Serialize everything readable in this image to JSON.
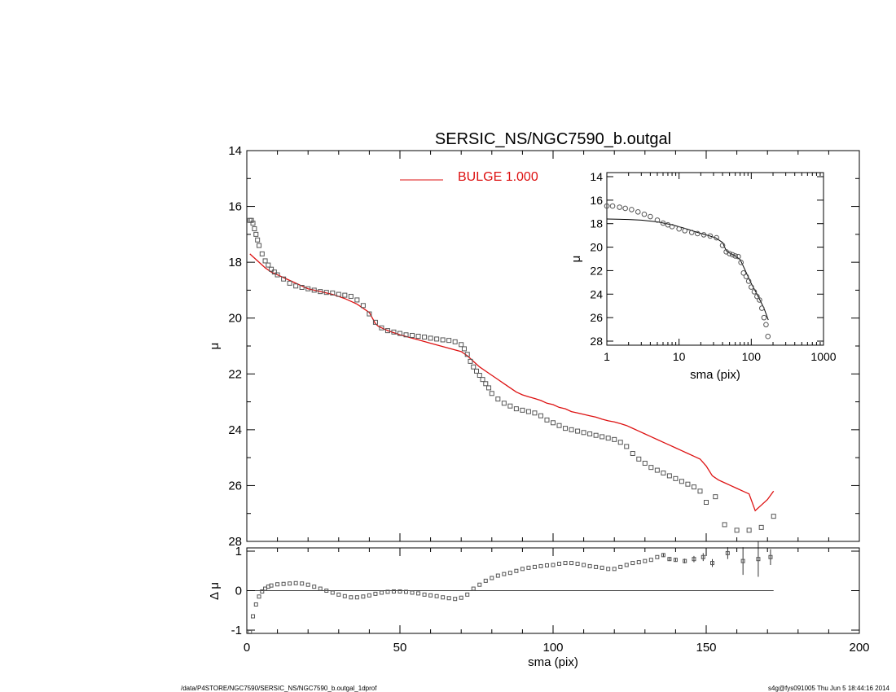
{
  "title": "SERSIC_NS/NGC7590_b.outgal",
  "footer": {
    "left": "/data/P4STORE/NGC7590/SERSIC_NS/NGC7590_b.outgal_1dprof",
    "right": "s4g@fys091005  Thu Jun  5 18:44:16 2014"
  },
  "colors": {
    "model": "#dd1111",
    "data": "#555555",
    "axis": "#000000"
  },
  "legend": {
    "label": "BULGE  1.000"
  },
  "chart_data": [
    {
      "type": "scatter",
      "panel": "main",
      "ylabel": "μ",
      "xlim": [
        0,
        200
      ],
      "ylim": [
        28,
        14
      ],
      "yticks": [
        "14",
        "16",
        "18",
        "20",
        "22",
        "24",
        "26",
        "28"
      ],
      "series": [
        {
          "kind": "data",
          "x": [
            1,
            1.5,
            2,
            2.5,
            3,
            3.5,
            4,
            5,
            6,
            7,
            8,
            9,
            10,
            12,
            14,
            16,
            18,
            20,
            22,
            24,
            26,
            28,
            30,
            32,
            34,
            36,
            38,
            40,
            42,
            44,
            46,
            48,
            50,
            52,
            54,
            56,
            58,
            60,
            62,
            64,
            66,
            68,
            70,
            71,
            72,
            73,
            74,
            75,
            76,
            77,
            78,
            79,
            80,
            82,
            84,
            86,
            88,
            90,
            92,
            94,
            96,
            98,
            100,
            102,
            104,
            106,
            108,
            110,
            112,
            114,
            116,
            118,
            120,
            122,
            124,
            126,
            128,
            130,
            132,
            134,
            136,
            138,
            140,
            142,
            144,
            146,
            148,
            150,
            153,
            156,
            160,
            164,
            168,
            172
          ],
          "y": [
            16.5,
            16.5,
            16.6,
            16.8,
            17.0,
            17.2,
            17.4,
            17.7,
            17.95,
            18.1,
            18.25,
            18.35,
            18.45,
            18.6,
            18.75,
            18.85,
            18.9,
            18.95,
            19.0,
            19.05,
            19.08,
            19.1,
            19.15,
            19.18,
            19.22,
            19.35,
            19.55,
            19.85,
            20.15,
            20.35,
            20.45,
            20.5,
            20.55,
            20.6,
            20.62,
            20.65,
            20.68,
            20.72,
            20.75,
            20.78,
            20.8,
            20.85,
            20.95,
            21.1,
            21.3,
            21.55,
            21.75,
            21.9,
            22.05,
            22.2,
            22.35,
            22.5,
            22.7,
            22.9,
            23.05,
            23.15,
            23.25,
            23.3,
            23.35,
            23.4,
            23.5,
            23.65,
            23.75,
            23.85,
            23.95,
            24.0,
            24.05,
            24.1,
            24.15,
            24.2,
            24.25,
            24.3,
            24.35,
            24.45,
            24.6,
            24.85,
            25.05,
            25.2,
            25.35,
            25.45,
            25.55,
            25.65,
            25.75,
            25.85,
            25.95,
            26.05,
            26.2,
            26.6,
            26.4,
            27.4,
            27.6,
            27.6,
            27.5,
            27.1
          ]
        },
        {
          "kind": "model",
          "name": "BULGE  1.000",
          "x": [
            1,
            4,
            6,
            8,
            10,
            12,
            15,
            18,
            20,
            24,
            28,
            32,
            36,
            40,
            41,
            42,
            43,
            44,
            46,
            50,
            55,
            60,
            65,
            70,
            72,
            74,
            76,
            78,
            80,
            82,
            84,
            86,
            88,
            90,
            92,
            94,
            96,
            98,
            100,
            102,
            104,
            106,
            108,
            110,
            112,
            114,
            116,
            118,
            120,
            122,
            124,
            126,
            128,
            130,
            132,
            134,
            136,
            138,
            140,
            142,
            144,
            146,
            148,
            150,
            152,
            154,
            156,
            158,
            160,
            162,
            164,
            166,
            168,
            170,
            172
          ],
          "y": [
            17.7,
            18.0,
            18.2,
            18.35,
            18.45,
            18.55,
            18.7,
            18.85,
            18.95,
            19.05,
            19.15,
            19.3,
            19.5,
            19.8,
            20.0,
            20.2,
            20.3,
            20.35,
            20.45,
            20.6,
            20.75,
            20.9,
            21.05,
            21.2,
            21.35,
            21.55,
            21.75,
            21.9,
            22.05,
            22.2,
            22.35,
            22.5,
            22.65,
            22.75,
            22.82,
            22.88,
            22.95,
            23.05,
            23.1,
            23.2,
            23.25,
            23.35,
            23.4,
            23.45,
            23.5,
            23.55,
            23.62,
            23.68,
            23.72,
            23.78,
            23.85,
            23.95,
            24.05,
            24.15,
            24.25,
            24.35,
            24.45,
            24.55,
            24.65,
            24.75,
            24.85,
            24.95,
            25.05,
            25.3,
            25.65,
            25.8,
            25.9,
            26.0,
            26.1,
            26.2,
            26.3,
            26.9,
            26.7,
            26.5,
            26.2
          ]
        }
      ]
    },
    {
      "type": "scatter",
      "panel": "residual",
      "xlabel": "sma (pix)",
      "ylabel": "Δ μ",
      "xlim": [
        0,
        200
      ],
      "ylim": [
        -1,
        1
      ],
      "xticks": [
        "0",
        "50",
        "100",
        "150",
        "200"
      ],
      "yticks": [
        "1",
        "0",
        "-1"
      ],
      "series": [
        {
          "kind": "residual",
          "x": [
            1,
            2,
            3,
            4,
            5,
            6,
            7,
            8,
            10,
            12,
            14,
            16,
            18,
            20,
            22,
            24,
            26,
            28,
            30,
            32,
            34,
            36,
            38,
            40,
            42,
            44,
            46,
            48,
            50,
            52,
            54,
            56,
            58,
            60,
            62,
            64,
            66,
            68,
            70,
            72,
            74,
            76,
            78,
            80,
            82,
            84,
            86,
            88,
            90,
            92,
            94,
            96,
            98,
            100,
            102,
            104,
            106,
            108,
            110,
            112,
            114,
            116,
            118,
            120,
            122,
            124,
            126,
            128,
            130,
            132,
            134,
            136,
            138,
            140,
            143,
            146,
            149,
            152,
            157,
            162,
            167,
            171
          ],
          "y": [
            -1.05,
            -0.65,
            -0.35,
            -0.15,
            -0.02,
            0.05,
            0.1,
            0.13,
            0.16,
            0.17,
            0.18,
            0.19,
            0.18,
            0.15,
            0.1,
            0.05,
            0.0,
            -0.05,
            -0.1,
            -0.14,
            -0.17,
            -0.17,
            -0.15,
            -0.12,
            -0.08,
            -0.05,
            -0.03,
            -0.02,
            -0.02,
            -0.03,
            -0.05,
            -0.07,
            -0.1,
            -0.12,
            -0.14,
            -0.17,
            -0.19,
            -0.21,
            -0.18,
            -0.1,
            0.05,
            0.15,
            0.25,
            0.32,
            0.38,
            0.42,
            0.45,
            0.5,
            0.55,
            0.58,
            0.6,
            0.62,
            0.64,
            0.65,
            0.68,
            0.7,
            0.7,
            0.68,
            0.65,
            0.62,
            0.6,
            0.58,
            0.55,
            0.55,
            0.6,
            0.65,
            0.7,
            0.72,
            0.75,
            0.78,
            0.85,
            0.9,
            0.8,
            0.78,
            0.75,
            0.8,
            0.85,
            0.7,
            0.95,
            0.75,
            0.8,
            0.85
          ],
          "err": [
            0,
            0,
            0,
            0,
            0,
            0,
            0,
            0,
            0,
            0,
            0,
            0,
            0,
            0,
            0,
            0,
            0,
            0,
            0,
            0,
            0,
            0,
            0,
            0,
            0,
            0,
            0,
            0,
            0,
            0,
            0,
            0,
            0,
            0,
            0,
            0,
            0,
            0,
            0,
            0,
            0,
            0,
            0,
            0,
            0,
            0,
            0,
            0,
            0,
            0,
            0,
            0,
            0,
            0,
            0,
            0,
            0,
            0,
            0,
            0,
            0,
            0,
            0,
            0,
            0,
            0,
            0,
            0,
            0,
            0,
            0,
            0.05,
            0.05,
            0.05,
            0.06,
            0.08,
            0.1,
            0.1,
            0.15,
            0.35,
            0.45,
            0.2
          ]
        }
      ]
    },
    {
      "type": "scatter",
      "panel": "inset",
      "xlabel": "sma (pix)",
      "ylabel": "μ",
      "xscale": "log",
      "xlim": [
        1,
        1000
      ],
      "ylim": [
        28,
        14
      ],
      "xticks": [
        "1",
        "10",
        "100",
        "1000"
      ],
      "yticks": [
        "14",
        "16",
        "18",
        "20",
        "22",
        "24",
        "26",
        "28"
      ],
      "series": [
        {
          "kind": "data",
          "x": [
            1,
            1.2,
            1.5,
            1.8,
            2.2,
            2.7,
            3.3,
            4,
            5,
            6,
            7,
            8,
            10,
            12,
            15,
            18,
            22,
            27,
            33,
            40,
            45,
            50,
            55,
            60,
            66,
            72,
            78,
            85,
            92,
            100,
            110,
            120,
            130,
            140,
            150,
            160,
            170
          ],
          "y": [
            16.5,
            16.5,
            16.6,
            16.7,
            16.8,
            17.0,
            17.2,
            17.4,
            17.7,
            17.95,
            18.1,
            18.25,
            18.45,
            18.6,
            18.75,
            18.85,
            18.95,
            19.05,
            19.2,
            19.85,
            20.4,
            20.55,
            20.65,
            20.75,
            20.8,
            21.3,
            22.2,
            22.5,
            22.9,
            23.4,
            23.8,
            24.2,
            24.5,
            25.2,
            26.0,
            26.6,
            27.6
          ]
        },
        {
          "kind": "model",
          "x": [
            1,
            2,
            3,
            5,
            8,
            12,
            18,
            25,
            32,
            40,
            45,
            50,
            60,
            70,
            80,
            100,
            120,
            150,
            172
          ],
          "y": [
            17.6,
            17.65,
            17.7,
            17.85,
            18.1,
            18.4,
            18.75,
            19.0,
            19.2,
            19.6,
            20.3,
            20.5,
            20.75,
            21.05,
            21.8,
            23.1,
            24.0,
            25.2,
            26.2
          ]
        }
      ]
    }
  ]
}
